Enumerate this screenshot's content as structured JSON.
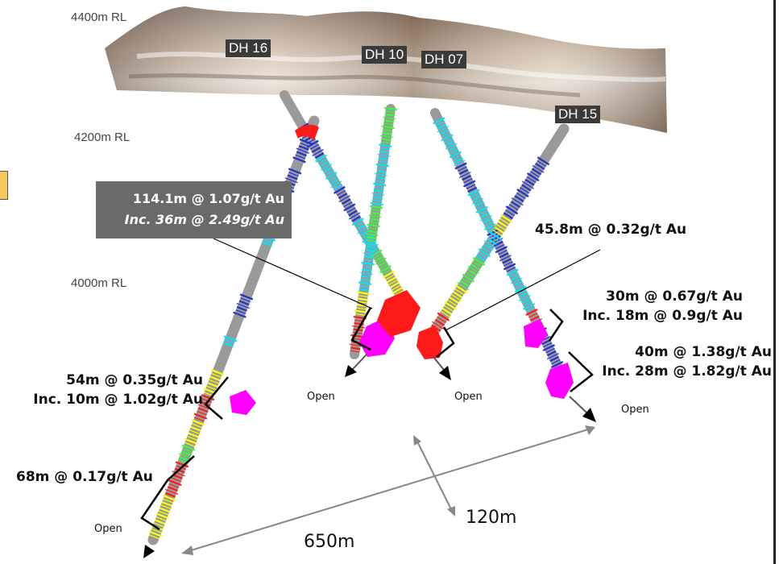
{
  "rl_labels": {
    "rl_4400": "4400m RL",
    "rl_4200": "4200m RL",
    "rl_4000": "4000m RL"
  },
  "holes": {
    "dh16": "DH 16",
    "dh10": "DH 10",
    "dh07": "DH 07",
    "dh15": "DH 15"
  },
  "callout": {
    "line1": "114.1m @ 1.07g/t Au",
    "line2": "Inc. 36m @ 2.49g/t Au"
  },
  "intercepts": {
    "dh07_a": "45.8m @ 0.32g/t Au",
    "dh15_a1": "30m @ 0.67g/t Au",
    "dh15_a2": "Inc. 18m @ 0.9g/t Au",
    "dh15_b1": "40m @ 1.38g/t Au",
    "dh15_b2": "Inc. 28m @ 1.82g/t Au",
    "dh16_a1": "54m @ 0.35g/t Au",
    "dh16_a2": "Inc. 10m @ 1.02g/t Au",
    "dh16_b": "68m @ 0.17g/t Au"
  },
  "open_labels": {
    "o1": "Open",
    "o2": "Open",
    "o3": "Open",
    "o4": "Open"
  },
  "scale": {
    "width": "650m",
    "depth": "120m"
  },
  "colors": {
    "hole_base": "#9a9a9a",
    "high_grade": "#ff00ff",
    "grade_red": "#ff1a1a",
    "grade_yellow": "#ffff00",
    "grade_green": "#33ff33",
    "grade_cyan": "#00e5ff",
    "grade_blue": "#2233cc",
    "terrain": "#b49a82",
    "callout_box": "#6a6a6a"
  }
}
